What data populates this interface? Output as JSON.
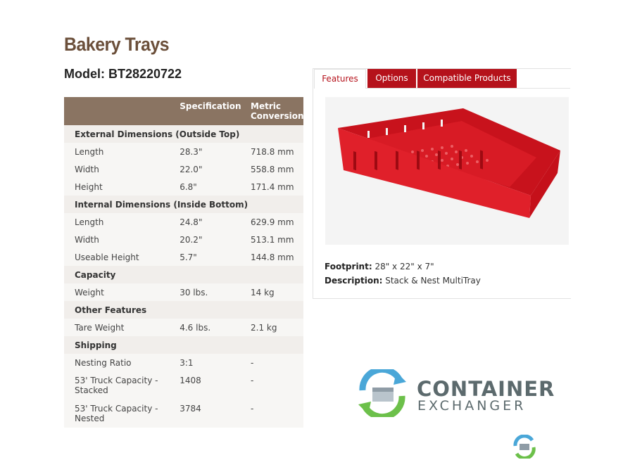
{
  "page": {
    "title": "Bakery Trays",
    "model_label": "Model: BT28220722"
  },
  "spec_table": {
    "headers": [
      "",
      "Specification",
      "Metric Conversion"
    ],
    "groups": [
      {
        "name": "External Dimensions (Outside Top)",
        "rows": [
          [
            "Length",
            "28.3\"",
            "718.8 mm"
          ],
          [
            "Width",
            "22.0\"",
            "558.8 mm"
          ],
          [
            "Height",
            "6.8\"",
            "171.4 mm"
          ]
        ]
      },
      {
        "name": "Internal Dimensions (Inside Bottom)",
        "rows": [
          [
            "Length",
            "24.8\"",
            "629.9 mm"
          ],
          [
            "Width",
            "20.2\"",
            "513.1 mm"
          ],
          [
            "Useable Height",
            "5.7\"",
            "144.8 mm"
          ]
        ]
      },
      {
        "name": "Capacity",
        "rows": [
          [
            "Weight",
            "30 lbs.",
            "14 kg"
          ]
        ]
      },
      {
        "name": "Other Features",
        "rows": [
          [
            "Tare Weight",
            "4.6 lbs.",
            "2.1 kg"
          ]
        ]
      },
      {
        "name": "Shipping",
        "rows": [
          [
            "Nesting Ratio",
            "3:1",
            "-"
          ],
          [
            "53' Truck Capacity - Stacked",
            "1408",
            "-"
          ],
          [
            "53' Truck Capacity - Nested",
            "3784",
            "-"
          ]
        ]
      }
    ]
  },
  "tabs": {
    "features": "Features",
    "options": "Options",
    "compatible": "Compatible Products"
  },
  "product": {
    "image_icon": "red-bakery-tray-image",
    "footprint_label": "Footprint:",
    "footprint_value": " 28\" x 22\" x 7\"",
    "description_label": "Description:",
    "description_value": " Stack & Nest MultiTray"
  },
  "branding": {
    "line1": "CONTAINER",
    "line2": "EXCHANGER",
    "logo_icon": "container-exchanger-logo-icon"
  },
  "colors": {
    "header_brown": "#8a7462",
    "title_brown": "#6b4f3a",
    "tab_red": "#b5121b",
    "tray_red": "#e0202a"
  }
}
